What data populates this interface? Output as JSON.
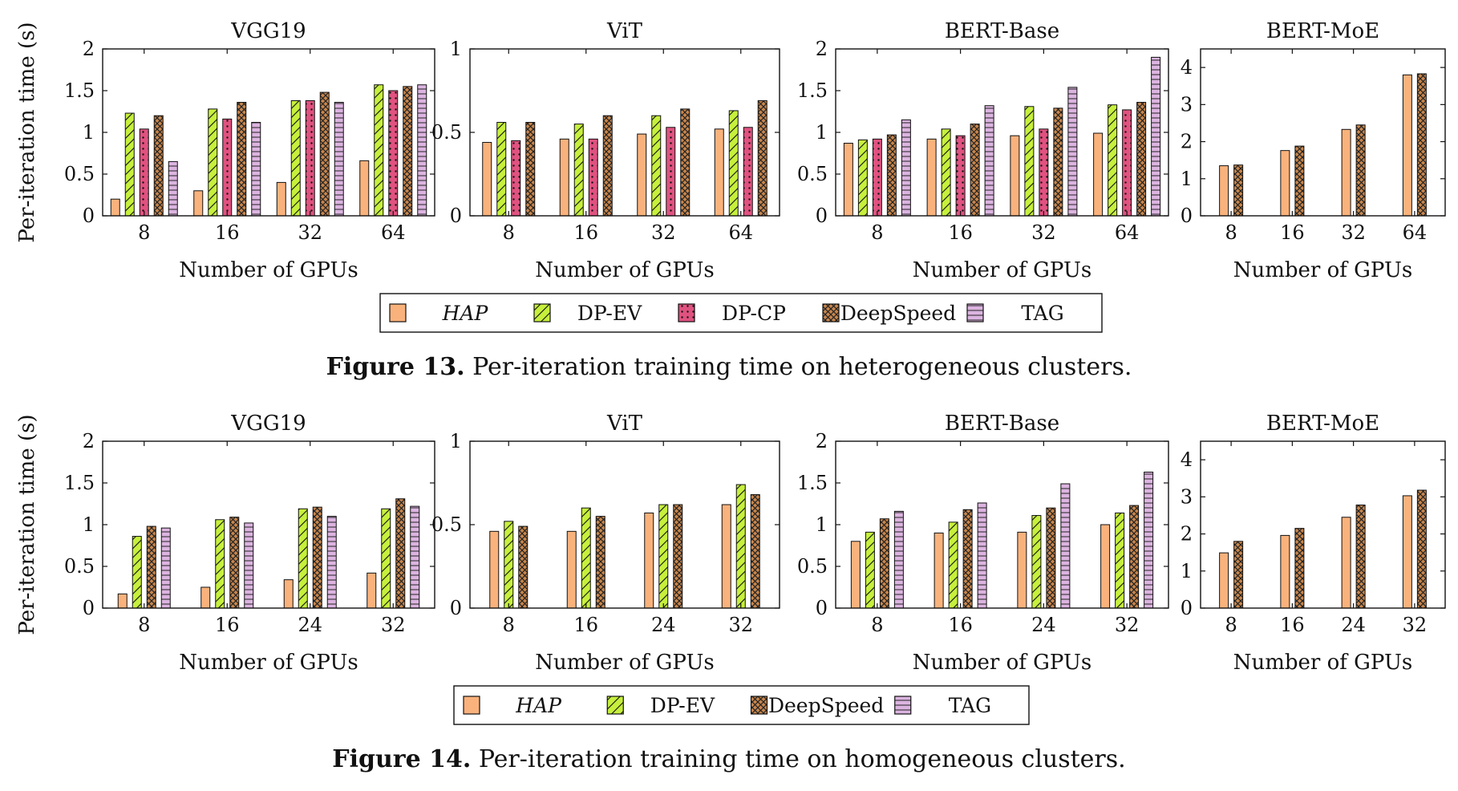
{
  "colors": {
    "HAP": "#f9b27c",
    "DP-EV": "#c6f03c",
    "DP-CP": "#e05280",
    "DeepSpeed": "#c8864c",
    "TAG": "#dcb4e0"
  },
  "figures": [
    {
      "caption_label": "Figure 13.",
      "caption_text": "Per-iteration training time on heterogeneous clusters.",
      "ylabel": "Per-iteration time (s)",
      "xlabel": "Number of GPUs",
      "legend": [
        "HAP",
        "DP-EV",
        "DP-CP",
        "DeepSpeed",
        "TAG"
      ]
    },
    {
      "caption_label": "Figure 14.",
      "caption_text": "Per-iteration training time on homogeneous clusters.",
      "ylabel": "Per-iteration time (s)",
      "xlabel": "Number of GPUs",
      "legend": [
        "HAP",
        "DP-EV",
        "DeepSpeed",
        "TAG"
      ]
    }
  ],
  "chart_data": [
    {
      "type": "bar",
      "title": "VGG19",
      "xlabel": "Number of GPUs",
      "ylabel": "Per-iteration time (s)",
      "categories": [
        "8",
        "16",
        "32",
        "64"
      ],
      "ylim": [
        0,
        2
      ],
      "yticks": [
        0,
        0.5,
        1,
        1.5,
        2
      ],
      "ytick_labels": [
        "0",
        "0.5",
        "1",
        "1.5",
        "2"
      ],
      "series": [
        {
          "name": "HAP",
          "values": [
            0.2,
            0.3,
            0.4,
            0.66
          ]
        },
        {
          "name": "DP-EV",
          "values": [
            1.23,
            1.28,
            1.38,
            1.57
          ]
        },
        {
          "name": "DP-CP",
          "values": [
            1.04,
            1.16,
            1.38,
            1.5
          ]
        },
        {
          "name": "DeepSpeed",
          "values": [
            1.2,
            1.36,
            1.48,
            1.55
          ]
        },
        {
          "name": "TAG",
          "values": [
            0.65,
            1.12,
            1.36,
            1.57
          ]
        }
      ]
    },
    {
      "type": "bar",
      "title": "ViT",
      "xlabel": "Number of GPUs",
      "categories": [
        "8",
        "16",
        "32",
        "64"
      ],
      "ylim": [
        0,
        1
      ],
      "yticks": [
        0,
        0.5,
        1
      ],
      "ytick_labels": [
        "0",
        "0.5",
        "1"
      ],
      "series": [
        {
          "name": "HAP",
          "values": [
            0.44,
            0.46,
            0.49,
            0.52
          ]
        },
        {
          "name": "DP-EV",
          "values": [
            0.56,
            0.55,
            0.6,
            0.63
          ]
        },
        {
          "name": "DP-CP",
          "values": [
            0.45,
            0.46,
            0.53,
            0.53
          ]
        },
        {
          "name": "DeepSpeed",
          "values": [
            0.56,
            0.6,
            0.64,
            0.69
          ]
        }
      ]
    },
    {
      "type": "bar",
      "title": "BERT-Base",
      "xlabel": "Number of GPUs",
      "categories": [
        "8",
        "16",
        "32",
        "64"
      ],
      "ylim": [
        0,
        2
      ],
      "yticks": [
        0,
        0.5,
        1,
        1.5,
        2
      ],
      "ytick_labels": [
        "0",
        "0.5",
        "1",
        "1.5",
        "2"
      ],
      "series": [
        {
          "name": "HAP",
          "values": [
            0.87,
            0.92,
            0.96,
            0.99
          ]
        },
        {
          "name": "DP-EV",
          "values": [
            0.91,
            1.04,
            1.31,
            1.33
          ]
        },
        {
          "name": "DP-CP",
          "values": [
            0.92,
            0.96,
            1.04,
            1.27
          ]
        },
        {
          "name": "DeepSpeed",
          "values": [
            0.97,
            1.1,
            1.29,
            1.36
          ]
        },
        {
          "name": "TAG",
          "values": [
            1.15,
            1.32,
            1.54,
            1.9
          ]
        }
      ]
    },
    {
      "type": "bar",
      "title": "BERT-MoE",
      "xlabel": "Number of GPUs",
      "categories": [
        "8",
        "16",
        "32",
        "64"
      ],
      "ylim": [
        0,
        4.5
      ],
      "yticks": [
        0,
        1,
        2,
        3,
        4
      ],
      "ytick_labels": [
        "0",
        "1",
        "2",
        "3",
        "4"
      ],
      "series": [
        {
          "name": "HAP",
          "values": [
            1.35,
            1.76,
            2.33,
            3.8
          ]
        },
        {
          "name": "DeepSpeed",
          "values": [
            1.37,
            1.88,
            2.45,
            3.83
          ]
        }
      ]
    },
    {
      "type": "bar",
      "title": "VGG19",
      "xlabel": "Number of GPUs",
      "ylabel": "Per-iteration time (s)",
      "categories": [
        "8",
        "16",
        "24",
        "32"
      ],
      "ylim": [
        0,
        2
      ],
      "yticks": [
        0,
        0.5,
        1,
        1.5,
        2
      ],
      "ytick_labels": [
        "0",
        "0.5",
        "1",
        "1.5",
        "2"
      ],
      "series": [
        {
          "name": "HAP",
          "values": [
            0.17,
            0.25,
            0.34,
            0.42
          ]
        },
        {
          "name": "DP-EV",
          "values": [
            0.86,
            1.06,
            1.19,
            1.19
          ]
        },
        {
          "name": "DeepSpeed",
          "values": [
            0.98,
            1.09,
            1.21,
            1.31
          ]
        },
        {
          "name": "TAG",
          "values": [
            0.96,
            1.02,
            1.1,
            1.22
          ]
        }
      ]
    },
    {
      "type": "bar",
      "title": "ViT",
      "xlabel": "Number of GPUs",
      "categories": [
        "8",
        "16",
        "24",
        "32"
      ],
      "ylim": [
        0,
        1
      ],
      "yticks": [
        0,
        0.5,
        1
      ],
      "ytick_labels": [
        "0",
        "0.5",
        "1"
      ],
      "series": [
        {
          "name": "HAP",
          "values": [
            0.46,
            0.46,
            0.57,
            0.62
          ]
        },
        {
          "name": "DP-EV",
          "values": [
            0.52,
            0.6,
            0.62,
            0.74
          ]
        },
        {
          "name": "DeepSpeed",
          "values": [
            0.49,
            0.55,
            0.62,
            0.68
          ]
        }
      ]
    },
    {
      "type": "bar",
      "title": "BERT-Base",
      "xlabel": "Number of GPUs",
      "categories": [
        "8",
        "16",
        "24",
        "32"
      ],
      "ylim": [
        0,
        2
      ],
      "yticks": [
        0,
        0.5,
        1,
        1.5,
        2
      ],
      "ytick_labels": [
        "0",
        "0.5",
        "1",
        "1.5",
        "2"
      ],
      "series": [
        {
          "name": "HAP",
          "values": [
            0.8,
            0.9,
            0.91,
            1.0
          ]
        },
        {
          "name": "DP-EV",
          "values": [
            0.91,
            1.03,
            1.11,
            1.14
          ]
        },
        {
          "name": "DeepSpeed",
          "values": [
            1.07,
            1.18,
            1.2,
            1.23
          ]
        },
        {
          "name": "TAG",
          "values": [
            1.16,
            1.26,
            1.49,
            1.63
          ]
        }
      ]
    },
    {
      "type": "bar",
      "title": "BERT-MoE",
      "xlabel": "Number of GPUs",
      "categories": [
        "8",
        "16",
        "24",
        "32"
      ],
      "ylim": [
        0,
        4.5
      ],
      "yticks": [
        0,
        1,
        2,
        3,
        4
      ],
      "ytick_labels": [
        "0",
        "1",
        "2",
        "3",
        "4"
      ],
      "series": [
        {
          "name": "HAP",
          "values": [
            1.49,
            1.96,
            2.45,
            3.03
          ]
        },
        {
          "name": "DeepSpeed",
          "values": [
            1.8,
            2.15,
            2.78,
            3.18
          ]
        }
      ]
    }
  ]
}
